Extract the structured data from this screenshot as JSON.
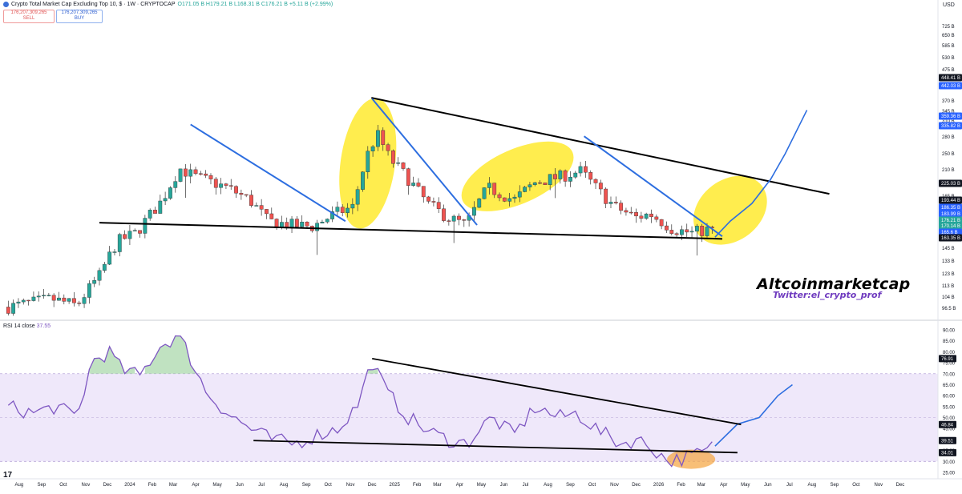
{
  "header": {
    "title": "Crypto Total Market Cap Excluding Top 10, $ · 1W · CRYPTOCAP",
    "ohlc": "O171.05 B H179.21 B L168.31 B C176.21 B +5.11 B (+2.99%)",
    "sell_price": "176,207,309,265",
    "sell_label": "SELL",
    "buy_price": "176,207,309,265",
    "buy_label": "BUY"
  },
  "price_axis": {
    "currency": "USD",
    "ticks": [
      "725 B",
      "650 B",
      "585 B",
      "530 B",
      "475 B",
      "410 B",
      "370 B",
      "345 B",
      "310 B",
      "280 B",
      "250 B",
      "210 B",
      "165 B",
      "145 B",
      "133 B",
      "123 B",
      "113 B",
      "104 B",
      "96.5 B"
    ],
    "badges": [
      {
        "label": "448.41 B",
        "bg": "#131722"
      },
      {
        "label": "442.03 B",
        "bg": "#2962ff"
      },
      {
        "label": "359.36 B",
        "bg": "#2962ff"
      },
      {
        "label": "335.82 B",
        "bg": "#2962ff"
      },
      {
        "label": "225.03 B",
        "bg": "#131722"
      },
      {
        "label": "193.44 B",
        "bg": "#131722"
      },
      {
        "label": "186.35 B",
        "bg": "#2962ff"
      },
      {
        "label": "183.99 B",
        "bg": "#2962ff"
      },
      {
        "label": "176.21 B",
        "bg": "#26a69a"
      },
      {
        "label": "170.14 B",
        "bg": "#26a69a"
      },
      {
        "label": "165.6 B",
        "bg": "#2962ff"
      },
      {
        "label": "163.35 B",
        "bg": "#131722"
      }
    ]
  },
  "time_axis": {
    "labels": [
      "Aug",
      "Sep",
      "Oct",
      "Nov",
      "Dec",
      "2024",
      "Feb",
      "Mar",
      "Apr",
      "May",
      "Jun",
      "Jul",
      "Aug",
      "Sep",
      "Oct",
      "Nov",
      "Dec",
      "2025",
      "Feb",
      "Mar",
      "Apr",
      "May",
      "Jun",
      "Jul",
      "Aug",
      "Sep",
      "Oct",
      "Nov",
      "Dec",
      "2026",
      "Feb",
      "Mar",
      "Apr",
      "May",
      "Jun",
      "Jul",
      "Aug",
      "Sep",
      "Oct",
      "Nov",
      "Dec"
    ]
  },
  "rsi": {
    "label": "RSI 14 close",
    "value": "37.55",
    "ticks": [
      "90.00",
      "85.00",
      "80.00",
      "75.00",
      "70.00",
      "65.00",
      "60.00",
      "55.00",
      "50.00",
      "45.00",
      "40.00",
      "35.00",
      "30.00",
      "25.00"
    ],
    "badges": [
      {
        "label": "76.91",
        "bg": "#131722"
      },
      {
        "label": "46.84",
        "bg": "#131722"
      },
      {
        "label": "39.51",
        "bg": "#131722"
      },
      {
        "label": "34.01",
        "bg": "#131722"
      }
    ]
  },
  "watermark": "Altcoinmarketcap",
  "twitter": "Twitter:el_crypto_prof",
  "colors": {
    "up": "#26a69a",
    "down": "#ef5350",
    "rsi_line": "#7e57c2",
    "trend_blue": "#2d6ee0",
    "highlight": "#ffeb3b",
    "rsi_band": "#efe8fa"
  },
  "chart_data": [
    {
      "type": "candlestick",
      "title": "Crypto Total Market Cap Excluding Top 10, $ · 1W · CRYPTOCAP",
      "ylabel": "USD",
      "log_scale": true,
      "ylim": [
        92,
        760
      ],
      "x_range": [
        "2023-07-10",
        "2026-12-31"
      ],
      "grid": false,
      "anchors": [
        [
          "2023-07-17",
          100
        ],
        [
          "2023-09-15",
          106
        ],
        [
          "2023-10-20",
          101
        ],
        [
          "2023-11-20",
          125
        ],
        [
          "2023-12-15",
          160
        ],
        [
          "2024-01-10",
          170
        ],
        [
          "2024-02-15",
          215
        ],
        [
          "2024-03-10",
          270
        ],
        [
          "2024-03-30",
          255
        ],
        [
          "2024-05-15",
          235
        ],
        [
          "2024-06-15",
          215
        ],
        [
          "2024-07-10",
          185
        ],
        [
          "2024-08-10",
          180
        ],
        [
          "2024-09-10",
          178
        ],
        [
          "2024-10-10",
          195
        ],
        [
          "2024-11-05",
          205
        ],
        [
          "2024-11-25",
          300
        ],
        [
          "2024-12-08",
          345
        ],
        [
          "2024-12-25",
          290
        ],
        [
          "2025-01-20",
          250
        ],
        [
          "2025-02-15",
          210
        ],
        [
          "2025-03-15",
          190
        ],
        [
          "2025-04-10",
          180
        ],
        [
          "2025-05-10",
          235
        ],
        [
          "2025-06-15",
          215
        ],
        [
          "2025-07-15",
          245
        ],
        [
          "2025-08-20",
          255
        ],
        [
          "2025-09-15",
          265
        ],
        [
          "2025-10-10",
          230
        ],
        [
          "2025-11-01",
          205
        ],
        [
          "2025-12-01",
          190
        ],
        [
          "2025-12-20",
          195
        ],
        [
          "2026-01-20",
          175
        ],
        [
          "2026-02-15",
          170
        ],
        [
          "2026-03-20",
          176
        ]
      ],
      "last_close": 176.21,
      "trendlines": [
        {
          "kind": "support",
          "color": "black",
          "from": [
            "2023-11-20",
            183
          ],
          "to": [
            "2026-03-30",
            163
          ]
        },
        {
          "kind": "resistance",
          "color": "black",
          "from": [
            "2024-11-30",
            448
          ],
          "to": [
            "2026-08-25",
            225
          ]
        },
        {
          "kind": "trend",
          "color": "blue",
          "from": [
            "2024-03-25",
            370
          ],
          "to": [
            "2024-10-25",
            185
          ]
        },
        {
          "kind": "trend",
          "color": "blue",
          "from": [
            "2024-12-01",
            445
          ],
          "to": [
            "2025-04-25",
            180
          ]
        },
        {
          "kind": "trend",
          "color": "blue",
          "from": [
            "2025-09-20",
            340
          ],
          "to": [
            "2026-03-30",
            166
          ]
        }
      ],
      "projection": [
        [
          "2026-03-20",
          165
        ],
        [
          "2026-04-10",
          185
        ],
        [
          "2026-05-10",
          210
        ],
        [
          "2026-06-05",
          250
        ],
        [
          "2026-06-25",
          300
        ],
        [
          "2026-07-25",
          410
        ]
      ],
      "highlights": [
        {
          "center": [
            "2024-11-25",
            280
          ],
          "rx": 34,
          "ry": 82,
          "angle": 8
        },
        {
          "center": [
            "2025-06-20",
            255
          ],
          "rx": 75,
          "ry": 34,
          "angle": -24
        },
        {
          "center": [
            "2026-04-10",
            200
          ],
          "rx": 50,
          "ry": 38,
          "angle": -38
        }
      ]
    },
    {
      "type": "line",
      "title": "RSI 14 close",
      "ylim": [
        25,
        90
      ],
      "overbought": 70,
      "oversold": 30,
      "anchors": [
        [
          "2023-07-17",
          55
        ],
        [
          "2023-08-20",
          52
        ],
        [
          "2023-09-20",
          55
        ],
        [
          "2023-10-20",
          50
        ],
        [
          "2023-11-10",
          76
        ],
        [
          "2023-12-05",
          80
        ],
        [
          "2023-12-20",
          72
        ],
        [
          "2024-01-15",
          69
        ],
        [
          "2024-02-10",
          82
        ],
        [
          "2024-03-05",
          87
        ],
        [
          "2024-03-15",
          84
        ],
        [
          "2024-04-15",
          62
        ],
        [
          "2024-05-15",
          52
        ],
        [
          "2024-06-15",
          45
        ],
        [
          "2024-07-15",
          40
        ],
        [
          "2024-08-15",
          38
        ],
        [
          "2024-09-15",
          42
        ],
        [
          "2024-10-15",
          45
        ],
        [
          "2024-11-10",
          55
        ],
        [
          "2024-12-01",
          76
        ],
        [
          "2024-12-20",
          62
        ],
        [
          "2025-01-20",
          50
        ],
        [
          "2025-02-15",
          44
        ],
        [
          "2025-03-15",
          40
        ],
        [
          "2025-04-10",
          38
        ],
        [
          "2025-05-15",
          50
        ],
        [
          "2025-06-15",
          42
        ],
        [
          "2025-07-15",
          55
        ],
        [
          "2025-08-15",
          50
        ],
        [
          "2025-09-10",
          52
        ],
        [
          "2025-10-10",
          44
        ],
        [
          "2025-11-10",
          38
        ],
        [
          "2025-12-01",
          40
        ],
        [
          "2025-12-20",
          37
        ],
        [
          "2026-01-15",
          30
        ],
        [
          "2026-02-10",
          32
        ],
        [
          "2026-03-05",
          34
        ],
        [
          "2026-03-20",
          37.55
        ]
      ],
      "projection": [
        [
          "2026-03-20",
          37
        ],
        [
          "2026-04-20",
          47
        ],
        [
          "2026-05-20",
          50
        ],
        [
          "2026-06-15",
          60
        ],
        [
          "2026-07-05",
          65
        ]
      ],
      "trendlines": [
        {
          "kind": "resistance",
          "from": [
            "2024-12-01",
            76.91
          ],
          "to": [
            "2026-04-25",
            46.84
          ]
        },
        {
          "kind": "support",
          "from": [
            "2024-06-20",
            39.51
          ],
          "to": [
            "2026-04-20",
            34.01
          ]
        }
      ],
      "highlights": [
        {
          "center": [
            "2026-02-15",
            31
          ],
          "rx": 30,
          "ry": 12,
          "angle": 0,
          "color": "#f5a94a"
        }
      ]
    }
  ]
}
